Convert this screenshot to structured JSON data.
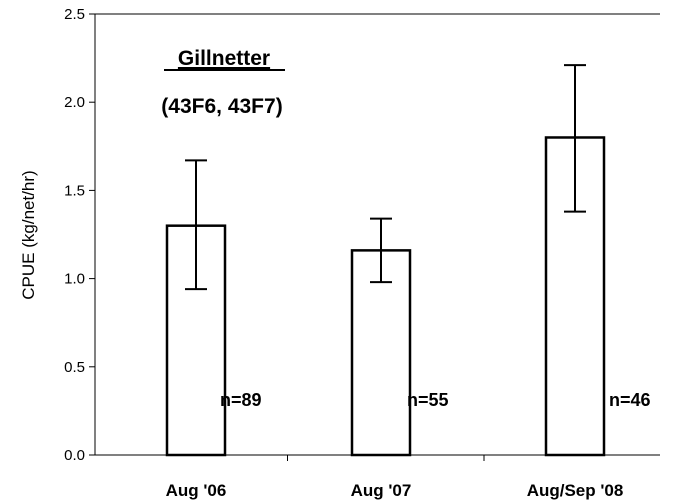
{
  "chart_data": {
    "type": "bar",
    "title": "Gillnetter",
    "subtitle": "(43F6, 43F7)",
    "xlabel": "",
    "ylabel": "CPUE (kg/net/hr)",
    "ylim": [
      0,
      2.5
    ],
    "yticks": [
      "0.0",
      "0.5",
      "1.0",
      "1.5",
      "2.0",
      "2.5"
    ],
    "categories": [
      "Aug '06",
      "Aug '07",
      "Aug/Sep '08"
    ],
    "values": [
      1.3,
      1.16,
      1.8
    ],
    "error_low": [
      0.94,
      0.98,
      1.38
    ],
    "error_high": [
      1.67,
      1.34,
      2.21
    ],
    "n_labels": [
      "n=89",
      "n=55",
      "n=46"
    ],
    "grid": false,
    "legend": "none",
    "colors": {
      "bar_fill": "#ffffff",
      "bar_stroke": "#000000",
      "axis": "#000000"
    }
  }
}
